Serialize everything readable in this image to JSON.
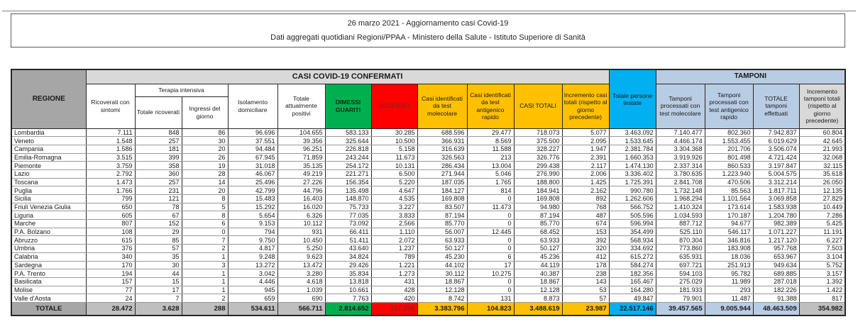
{
  "title": {
    "line1": "26 marzo 2021 - Aggiornamento casi Covid-19",
    "line2": "Dati aggregati quotidiani Regioni/PPAA - Ministero della Salute - Istituto Superiore di Sanità"
  },
  "colors": {
    "green": "#00b050",
    "red": "#ff0000",
    "yellow": "#ffc000",
    "cyan": "#00b0f0",
    "light_blue": "#b8cce4",
    "gray_dark": "#a6a6a6",
    "gray_mid": "#bfbfbf",
    "gray_light": "#d9d9d9"
  },
  "table": {
    "group_headers": {
      "confermati": "CASI COVID-19 CONFERMATI",
      "tamponi": "TAMPONI",
      "terapia_intensiva": "Terapia intensiva"
    },
    "columns": {
      "regione": "REGIONE",
      "ricoverati_con_sintomi": "Ricoverati con sintomi",
      "terapia_totale_ricoverati": "Totale ricoverati",
      "terapia_ingressi_del_giorno": "Ingressi del giorno",
      "isolamento_domiciliare": "Isolamento domiciliare",
      "totale_attualmente_positivi": "Totale attualmente positivi",
      "dimessi_guariti": "DIMESSI GUARITI",
      "deceduti": "DECEDUTI",
      "casi_test_molecolare": "Casi identificati da test molecolare",
      "casi_test_antigenico": "Casi identificati da test antigenico rapido",
      "casi_totali": "CASI TOTALI",
      "incremento_casi_totali": "Incremento casi totali (rispetto al giorno precedente)",
      "totale_persone_testate": "Totale persone testate",
      "tamponi_test_molecolare": "Tamponi processati con test molecolare",
      "tamponi_test_antigenico": "Tamponi processati con test antigenico rapido",
      "totale_tamponi_effettuati": "TOTALE tamponi effettuati",
      "incremento_tamponi_totali": "Incremento tamponi totali (rispetto al giorno precedente)"
    },
    "rows": [
      [
        "Lombardia",
        "7.111",
        "848",
        "86",
        "96.696",
        "104.655",
        "583.133",
        "30.285",
        "688.596",
        "29.477",
        "718.073",
        "5.077",
        "3.463.092",
        "7.140.477",
        "802.360",
        "7.942.837",
        "60.804"
      ],
      [
        "Veneto",
        "1.548",
        "257",
        "30",
        "37.551",
        "39.356",
        "325.644",
        "10.500",
        "366.931",
        "8.569",
        "375.500",
        "2.095",
        "1.533.645",
        "4.466.174",
        "1.553.455",
        "6.019.629",
        "42.645"
      ],
      [
        "Campania",
        "1.586",
        "181",
        "20",
        "94.484",
        "96.251",
        "226.818",
        "5.158",
        "316.639",
        "11.588",
        "328.227",
        "1.947",
        "2.381.784",
        "3.304.368",
        "201.706",
        "3.506.074",
        "21.993"
      ],
      [
        "Emilia-Romagna",
        "3.515",
        "399",
        "26",
        "67.945",
        "71.859",
        "243.244",
        "11.673",
        "326.563",
        "213",
        "326.776",
        "2.391",
        "1.660.353",
        "3.919.926",
        "801.498",
        "4.721.424",
        "32.068"
      ],
      [
        "Piemonte",
        "3.759",
        "358",
        "19",
        "31.018",
        "35.135",
        "254.172",
        "10.131",
        "286.434",
        "13.004",
        "299.438",
        "2.117",
        "1.474.130",
        "2.337.314",
        "860.533",
        "3.197.847",
        "32.115"
      ],
      [
        "Lazio",
        "2.792",
        "360",
        "28",
        "46.067",
        "49.219",
        "221.271",
        "6.500",
        "271.944",
        "5.046",
        "276.990",
        "2.006",
        "3.336.402",
        "3.780.635",
        "1.223.940",
        "5.004.575",
        "35.618"
      ],
      [
        "Toscana",
        "1.473",
        "257",
        "14",
        "25.496",
        "27.226",
        "156.354",
        "5.220",
        "187.035",
        "1.765",
        "188.800",
        "1.425",
        "1.725.391",
        "2.841.708",
        "470.506",
        "3.312.214",
        "26.050"
      ],
      [
        "Puglia",
        "1.766",
        "231",
        "20",
        "42.799",
        "44.796",
        "135.498",
        "4.647",
        "184.127",
        "814",
        "184.941",
        "2.162",
        "990.780",
        "1.732.148",
        "85.563",
        "1.817.711",
        "12.135"
      ],
      [
        "Sicilia",
        "799",
        "121",
        "8",
        "15.483",
        "16.403",
        "148.870",
        "4.535",
        "169.808",
        "0",
        "169.808",
        "892",
        "1.262.606",
        "1.968.294",
        "1.101.564",
        "3.069.858",
        "27.829"
      ],
      [
        "Friuli Venezia Giulia",
        "650",
        "78",
        "5",
        "15.292",
        "16.020",
        "75.733",
        "3.227",
        "83.507",
        "11.473",
        "94.980",
        "768",
        "566.752",
        "1.410.324",
        "173.614",
        "1.583.938",
        "10.449"
      ],
      [
        "Liguria",
        "605",
        "67",
        "8",
        "5.654",
        "6.326",
        "77.035",
        "3.833",
        "87.194",
        "0",
        "87.194",
        "487",
        "505.596",
        "1.034.593",
        "170.187",
        "1.204.780",
        "7.286"
      ],
      [
        "Marche",
        "807",
        "152",
        "6",
        "9.153",
        "10.112",
        "73.092",
        "2.566",
        "85.770",
        "0",
        "85.770",
        "674",
        "596.994",
        "887.712",
        "94.677",
        "982.389",
        "5.425"
      ],
      [
        "P.A. Bolzano",
        "108",
        "29",
        "0",
        "794",
        "931",
        "66.411",
        "1.110",
        "56.007",
        "12.445",
        "68.452",
        "153",
        "354.499",
        "525.110",
        "546.117",
        "1.071.227",
        "11.191"
      ],
      [
        "Abruzzo",
        "615",
        "85",
        "7",
        "9.750",
        "10.450",
        "51.411",
        "2.072",
        "63.933",
        "0",
        "63.933",
        "392",
        "568.934",
        "870.304",
        "346.816",
        "1.217.120",
        "6.227"
      ],
      [
        "Umbria",
        "376",
        "57",
        "2",
        "4.817",
        "5.250",
        "43.640",
        "1.237",
        "50.127",
        "0",
        "50.127",
        "320",
        "334.692",
        "773.860",
        "183.908",
        "957.768",
        "7.503"
      ],
      [
        "Calabria",
        "340",
        "35",
        "1",
        "9.248",
        "9.623",
        "34.824",
        "789",
        "45.230",
        "6",
        "45.236",
        "412",
        "615.272",
        "635.931",
        "18.036",
        "653.967",
        "3.104"
      ],
      [
        "Sardegna",
        "170",
        "30",
        "3",
        "13.272",
        "13.472",
        "29.426",
        "1.221",
        "44.102",
        "17",
        "44.119",
        "178",
        "584.274",
        "697.721",
        "251.913",
        "949.634",
        "5.752"
      ],
      [
        "P.A. Trento",
        "194",
        "44",
        "1",
        "3.042",
        "3.280",
        "35.834",
        "1.273",
        "30.112",
        "10.275",
        "40.387",
        "238",
        "182.356",
        "594.103",
        "95.782",
        "689.885",
        "3.157"
      ],
      [
        "Basilicata",
        "157",
        "15",
        "1",
        "4.446",
        "4.618",
        "13.818",
        "431",
        "18.867",
        "0",
        "18.867",
        "143",
        "165.467",
        "275.029",
        "11.989",
        "287.018",
        "1.392"
      ],
      [
        "Molise",
        "77",
        "17",
        "1",
        "945",
        "1.039",
        "10.661",
        "428",
        "12.128",
        "0",
        "12.128",
        "53",
        "164.280",
        "181.933",
        "293",
        "182.226",
        "1.422"
      ],
      [
        "Valle d'Aosta",
        "24",
        "7",
        "2",
        "659",
        "690",
        "7.763",
        "420",
        "8.742",
        "131",
        "8.873",
        "57",
        "49.847",
        "79.901",
        "11.487",
        "91.388",
        "817"
      ]
    ],
    "total_row": [
      "TOTALE",
      "28.472",
      "3.628",
      "288",
      "534.611",
      "566.711",
      "2.814.652",
      "107.256",
      "3.383.796",
      "104.823",
      "3.488.619",
      "23.987",
      "22.517.146",
      "39.457.565",
      "9.005.944",
      "48.463.509",
      "354.982"
    ]
  }
}
